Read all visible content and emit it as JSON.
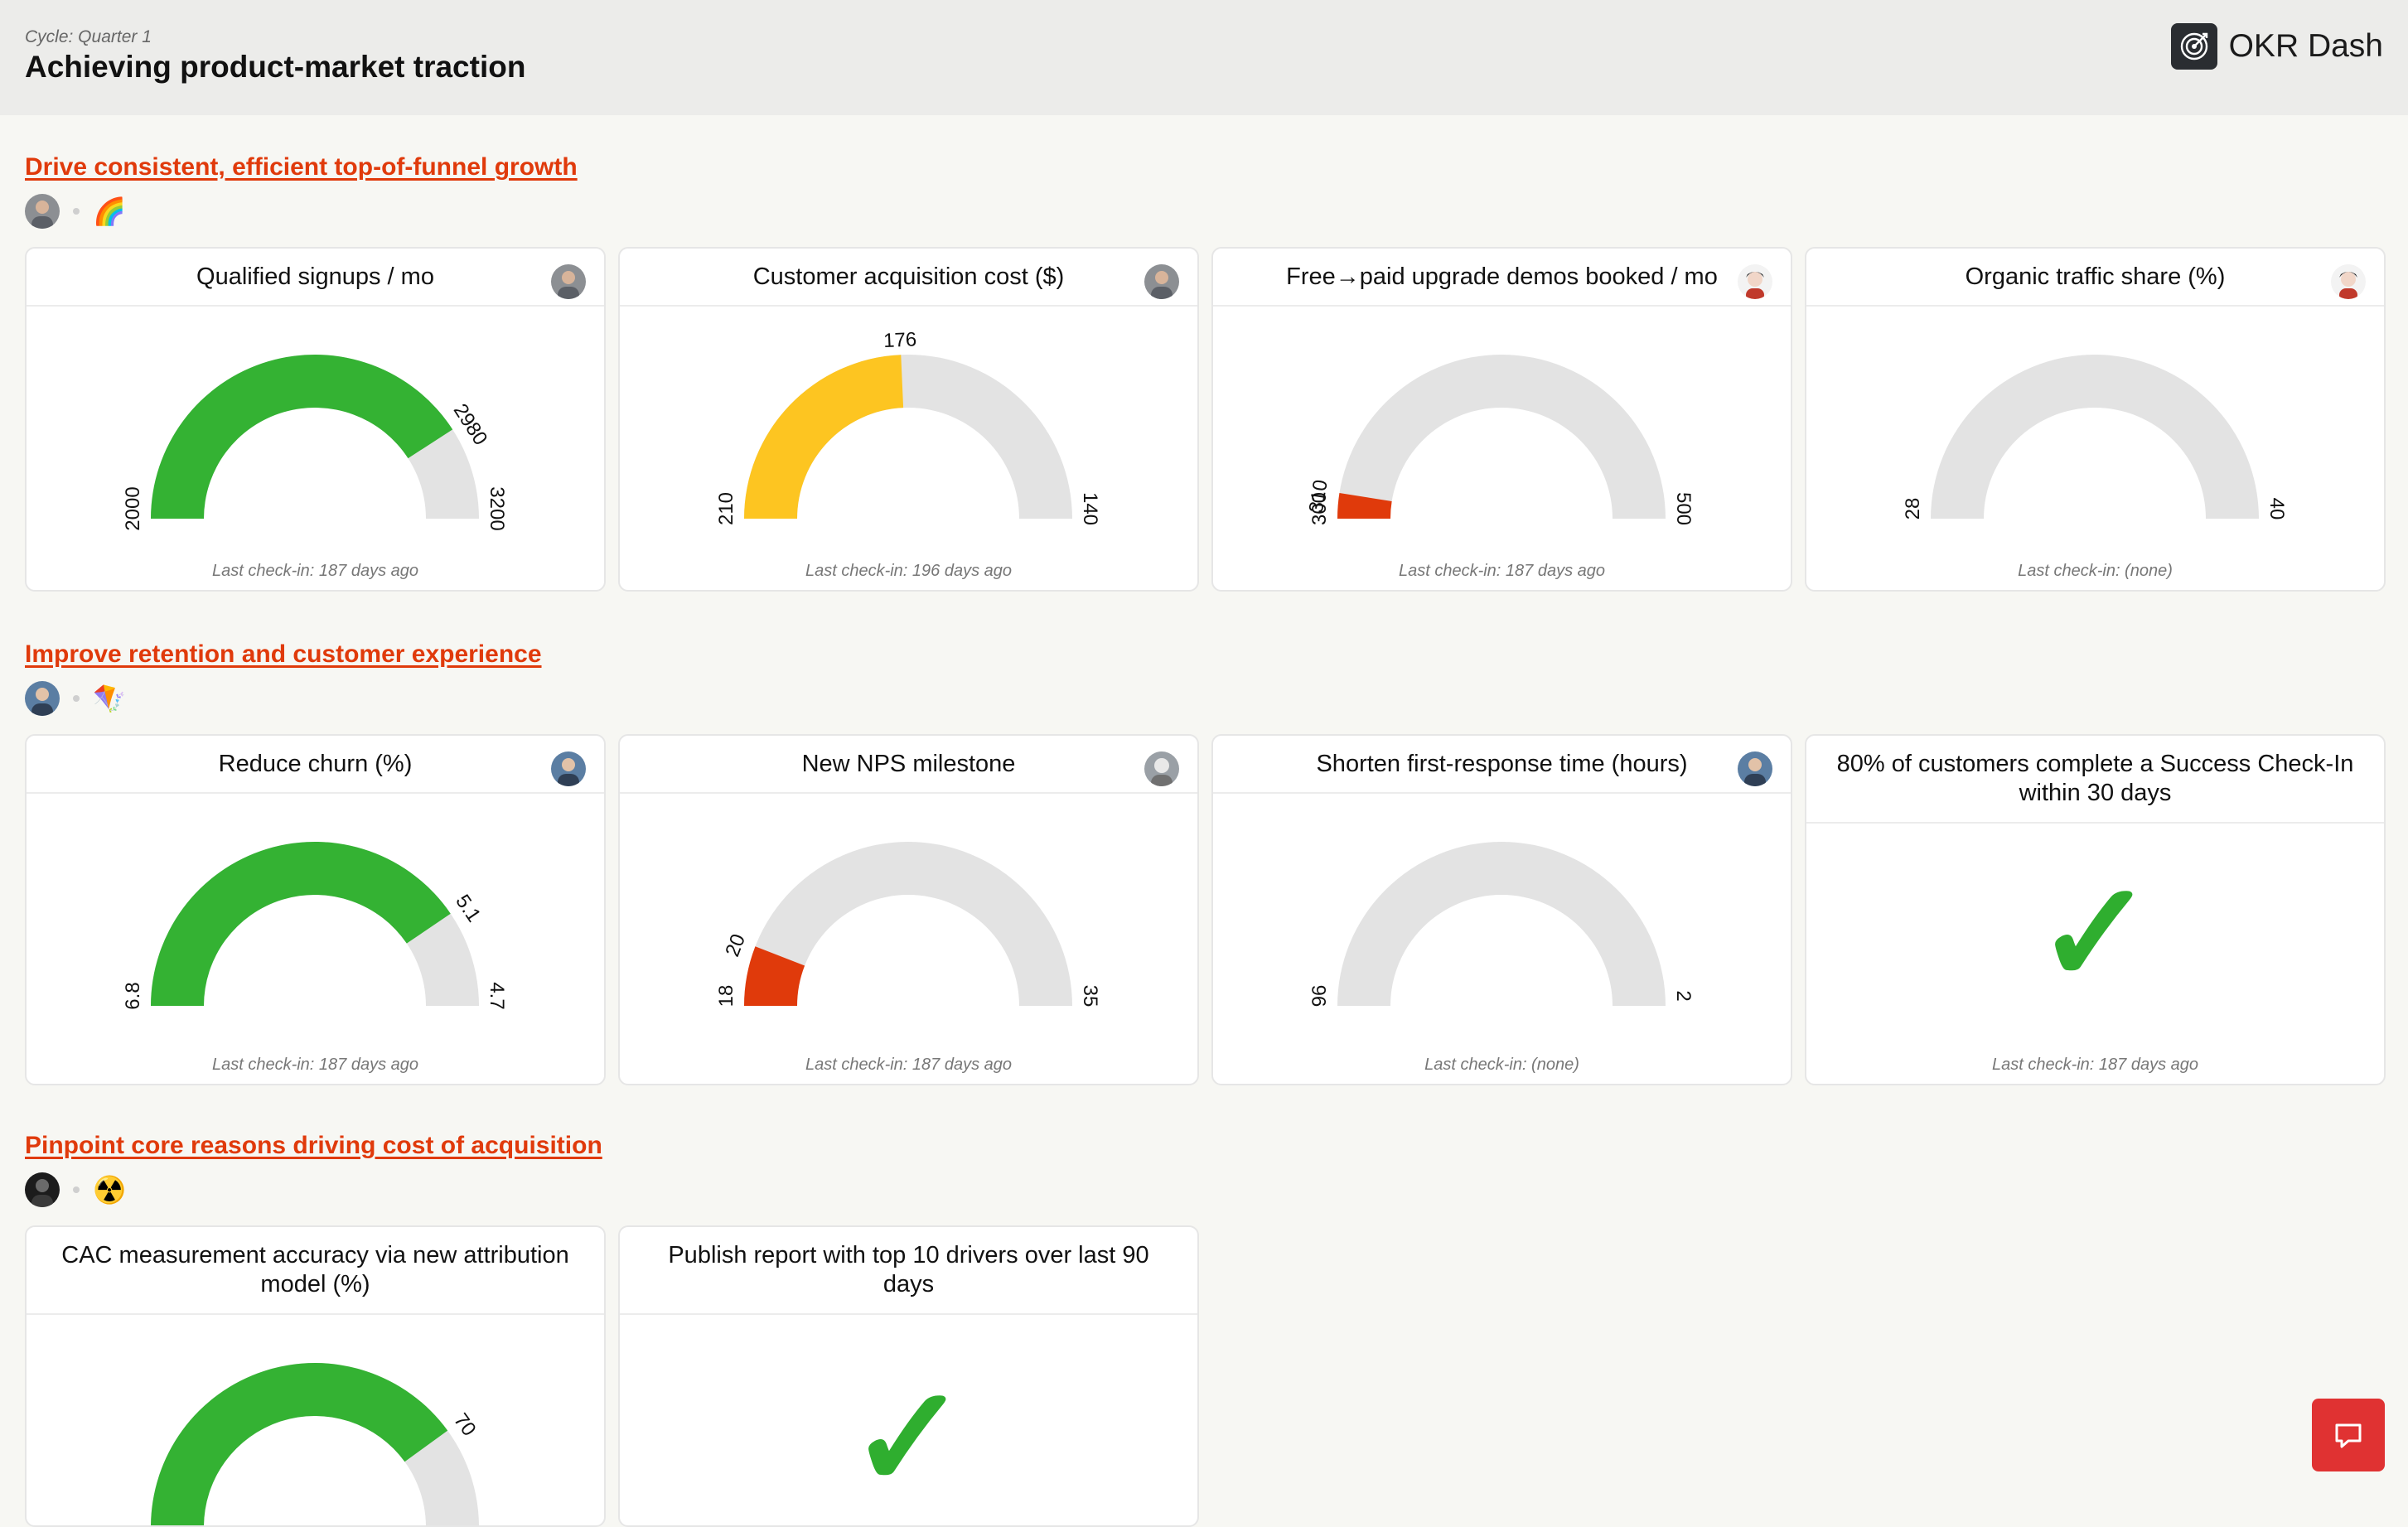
{
  "header": {
    "cycle": "Cycle: Quarter 1",
    "title": "Achieving product-market traction",
    "brand": "OKR Dash"
  },
  "colors": {
    "accent": "#e03a0b",
    "good": "#34b233",
    "warning": "#fdc521",
    "bad": "#e03a0b",
    "track": "#e3e3e3",
    "fab": "#e03232"
  },
  "objectives": [
    {
      "title": "Drive consistent, efficient top-of-funnel growth",
      "emoji": "🌈",
      "krs": [
        {
          "title": "Qualified signups / mo",
          "start": "2000",
          "current": "2980",
          "target": "3200",
          "progress": 0.817,
          "color": "#34b233",
          "checkin": "Last check-in: 187 days ago",
          "avatar": "avatar"
        },
        {
          "title": "Customer acquisition cost ($)",
          "start": "210",
          "current": "176",
          "target": "140",
          "progress": 0.486,
          "color": "#fdc521",
          "checkin": "Last check-in: 196 days ago",
          "avatar": "avatar"
        },
        {
          "title": "Free→paid upgrade demos booked / mo",
          "start": "300",
          "current": "310",
          "target": "500",
          "progress": 0.05,
          "color": "#e03a0b",
          "checkin": "Last check-in: 187 days ago",
          "avatar": "avatar"
        },
        {
          "title": "Organic traffic share (%)",
          "start": "28",
          "current": "",
          "target": "40",
          "progress": 0,
          "color": "#e3e3e3",
          "checkin": "Last check-in: (none)",
          "avatar": "avatar"
        }
      ]
    },
    {
      "title": "Improve retention and customer experience",
      "emoji": "🪁",
      "krs": [
        {
          "title": "Reduce churn (%)",
          "start": "6.8",
          "current": "5.1",
          "target": "4.7",
          "progress": 0.81,
          "color": "#34b233",
          "checkin": "Last check-in: 187 days ago",
          "avatar": "avatar"
        },
        {
          "title": "New NPS milestone",
          "start": "18",
          "current": "20",
          "target": "35",
          "progress": 0.118,
          "color": "#e03a0b",
          "checkin": "Last check-in: 187 days ago",
          "avatar": "avatar"
        },
        {
          "title": "Shorten first-response time (hours)",
          "start": "96",
          "current": "",
          "target": "2",
          "progress": 0,
          "color": "#e3e3e3",
          "checkin": "Last check-in: (none)",
          "avatar": "avatar"
        },
        {
          "title": "80% of customers complete a Success Check-In within 30 days",
          "done": true,
          "check": "✓",
          "checkin": "Last check-in: 187 days ago"
        }
      ]
    },
    {
      "title": "Pinpoint core reasons driving cost of acquisition",
      "emoji": "☢️",
      "krs": [
        {
          "title": "CAC measurement accuracy via new attribution model (%)",
          "start": "",
          "current": "70",
          "target": "",
          "progress": 0.8,
          "color": "#34b233"
        },
        {
          "title": "Publish report with top 10 drivers over last 90 days",
          "done": true,
          "check": "✓"
        }
      ]
    }
  ]
}
